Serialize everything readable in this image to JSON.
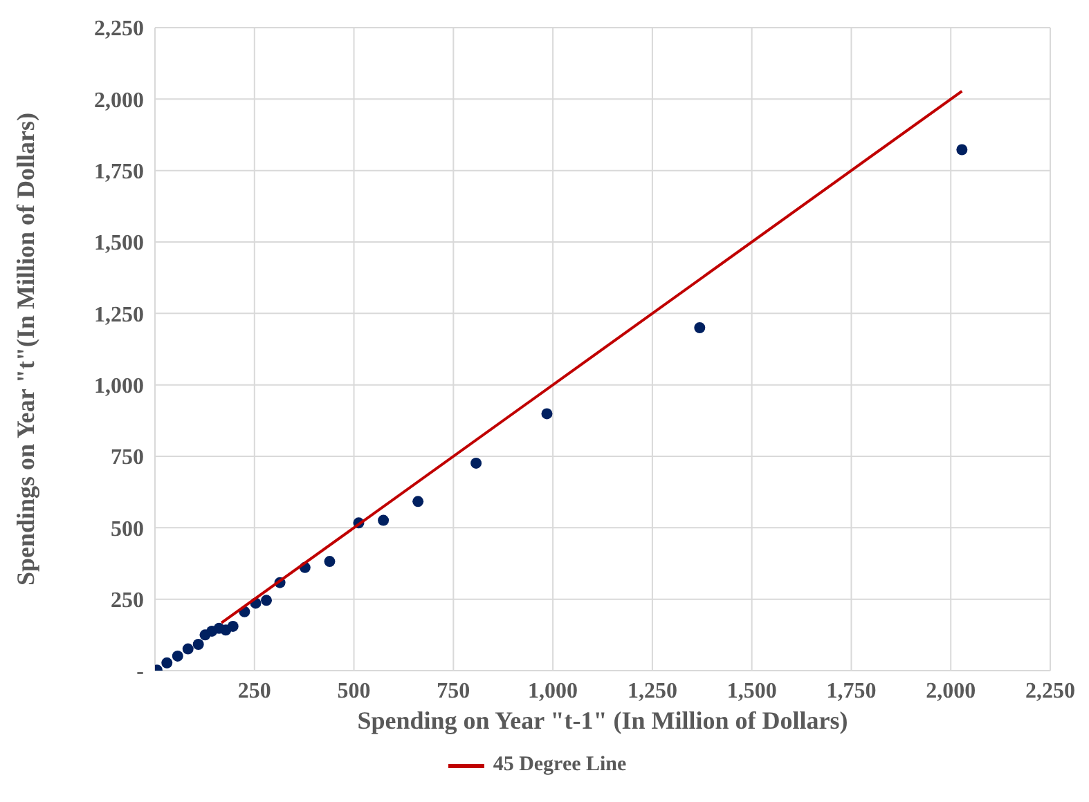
{
  "chart_data": {
    "type": "scatter",
    "xlabel": "Spending on Year \"t-1\" (In Million of Dollars)",
    "ylabel": "Spendings on Year \"t\"(In Million of Dollars)",
    "xlim": [
      0,
      2250
    ],
    "ylim": [
      0,
      2250
    ],
    "xticks": [
      {
        "value": 0,
        "label": null
      },
      250,
      500,
      750,
      {
        "value": 1000,
        "label": "1,000"
      },
      {
        "value": 1250,
        "label": "1,250"
      },
      {
        "value": 1500,
        "label": "1,500"
      },
      {
        "value": 1750,
        "label": "1,750"
      },
      {
        "value": 2000,
        "label": "2,000"
      },
      {
        "value": 2250,
        "label": "2,250"
      }
    ],
    "yticks": [
      {
        "value": 0,
        "label": "-"
      },
      250,
      500,
      750,
      {
        "value": 1000,
        "label": "1,000"
      },
      {
        "value": 1250,
        "label": "1,250"
      },
      {
        "value": 1500,
        "label": "1,500"
      },
      {
        "value": 1750,
        "label": "1,750"
      },
      {
        "value": 2000,
        "label": "2,000"
      },
      {
        "value": 2250,
        "label": "2,250"
      }
    ],
    "grid": true,
    "legend": "bottom",
    "marker": "circle",
    "series": [
      {
        "type": "scatter",
        "color": "#002060",
        "x": [
          5,
          30,
          57,
          83,
          109,
          126,
          143,
          161,
          178,
          196,
          225,
          253,
          280,
          314,
          377,
          439,
          512,
          574,
          661,
          807,
          985,
          1369,
          2028
        ],
        "values": [
          2,
          27,
          51,
          76,
          92,
          125,
          138,
          148,
          142,
          155,
          206,
          236,
          246,
          308,
          361,
          382,
          517,
          526,
          592,
          726,
          899,
          1200,
          1823
        ]
      },
      {
        "type": "line",
        "name": "45 Degree Line",
        "color": "#c00000",
        "marker": "none",
        "line_style": "solid",
        "x": [
          167,
          2028
        ],
        "values": [
          167,
          2028
        ]
      }
    ]
  }
}
